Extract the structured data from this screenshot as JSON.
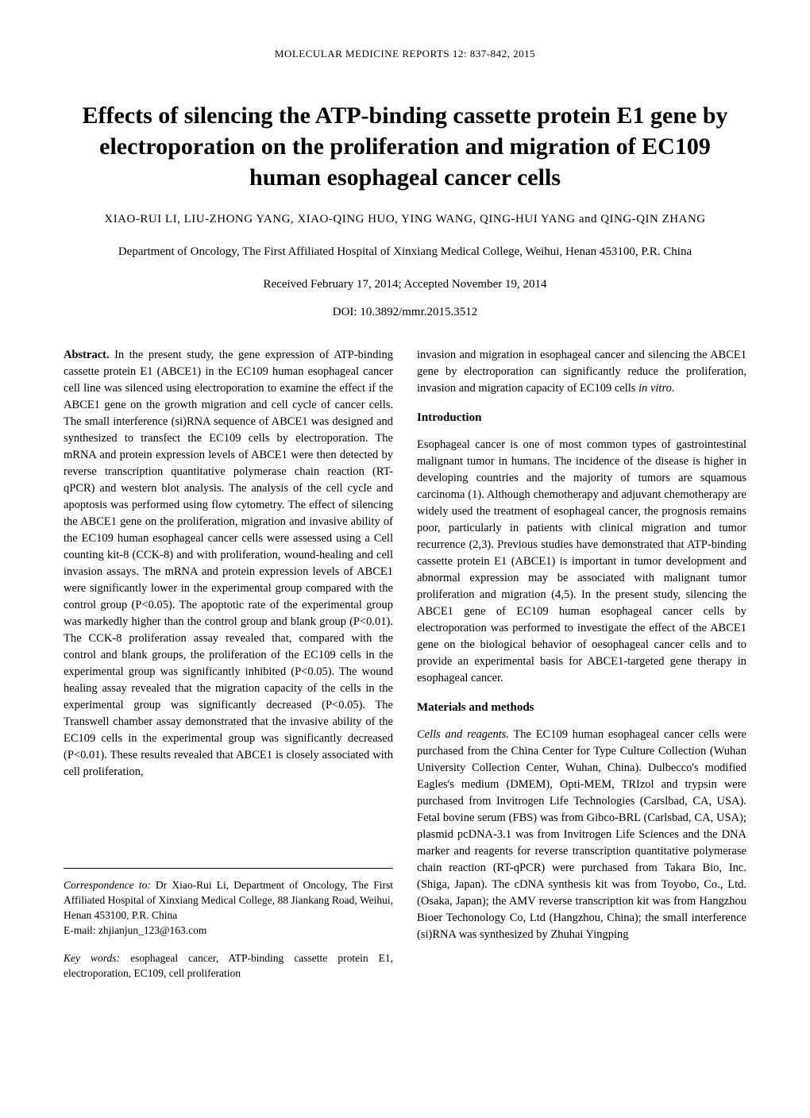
{
  "journal_header": "MOLECULAR MEDICINE REPORTS  12:  837-842,  2015",
  "title": "Effects of silencing the ATP-binding cassette protein E1 gene by electroporation on the proliferation and migration of EC109 human esophageal cancer cells",
  "authors": "XIAO-RUI LI,  LIU-ZHONG YANG,  XIAO-QING HUO,  YING WANG, QING-HUI YANG  and  QING-QIN ZHANG",
  "affiliation": "Department of Oncology, The First Affiliated Hospital of Xinxiang Medical College, Weihui, Henan 453100, P.R. China",
  "received": "Received February 17, 2014;  Accepted November 19, 2014",
  "doi": "DOI: 10.3892/mmr.2015.3512",
  "abstract_label": "Abstract.",
  "abstract_text": " In the present study, the gene expression of ATP-binding cassette protein E1 (ABCE1) in the EC109 human esophageal cancer cell line was silenced using electroporation to examine the effect if the ABCE1 gene on the growth migration and cell cycle of cancer cells. The small interference (si)RNA sequence of ABCE1 was designed and synthesized to transfect the EC109 cells by electroporation. The mRNA and protein expression levels of ABCE1 were then detected by reverse transcription quantitative polymerase chain reaction (RT-qPCR) and western blot analysis. The analysis of the cell cycle and apoptosis was performed using flow cytometry. The effect of silencing the ABCE1 gene on the proliferation, migration and invasive ability of the EC109 human esophageal cancer cells were assessed using a Cell counting kit-8 (CCK-8) and with proliferation, wound-healing and cell invasion assays. The mRNA and protein expression levels of ABCE1 were significantly lower in the experimental group compared with the control group (P<0.05). The apoptotic rate of the experimental group was markedly higher than the control group and blank group (P<0.01). The CCK-8 proliferation assay revealed that, compared with the control and blank groups, the proliferation of the EC109 cells in the experimental group was significantly inhibited (P<0.05). The wound healing assay revealed that the migration capacity of the cells in the experimental group was significantly decreased (P<0.05). The Transwell chamber assay demonstrated that the invasive ability of the EC109 cells in the experimental group was significantly decreased (P<0.01). These results revealed that ABCE1 is closely associated with cell proliferation,",
  "correspondence_label": "Correspondence to:",
  "correspondence_text": " Dr Xiao-Rui Li, Department of Oncology, The First Affiliated Hospital of Xinxiang Medical College, 88 Jiankang Road, Weihui, Henan 453100, P.R. China",
  "email_label": "E-mail: ",
  "email": "zhjianjun_123@163.com",
  "keywords_label": "Key words:",
  "keywords_text": " esophageal cancer, ATP-binding cassette protein E1, electroporation, EC109, cell proliferation",
  "col2_continuation": "invasion and migration in esophageal cancer and silencing the ABCE1 gene by electroporation can significantly reduce the proliferation, invasion and migration capacity of EC109 cells ",
  "col2_continuation_italic": "in vitro",
  "col2_continuation_end": ".",
  "introduction_heading": "Introduction",
  "introduction_text": "Esophageal cancer is one of most common types of gastrointestinal malignant tumor in humans. The incidence of the disease is higher in developing countries and the majority of tumors are squamous carcinoma (1). Although chemotherapy and adjuvant chemotherapy are widely used the treatment of esophageal cancer, the prognosis remains poor, particularly in patients with clinical migration and tumor recurrence (2,3). Previous studies have demonstrated that ATP-binding cassette protein E1 (ABCE1) is important in tumor development and abnormal expression may be associated with malignant tumor proliferation and migration (4,5). In the present study, silencing the ABCE1 gene of EC109 human esophageal cancer cells by electroporation was performed to investigate the effect of the ABCE1 gene on the biological behavior of oesophageal cancer cells and to provide an experimental basis for ABCE1-targeted gene therapy in esophageal cancer.",
  "materials_heading": "Materials and methods",
  "cells_label": "Cells and reagents.",
  "cells_text": " The EC109 human esophageal cancer cells were purchased from the China Center for Type Culture Collection (Wuhan University Collection Center, Wuhan, China). Dulbecco's modified Eagles's medium (DMEM), Opti-MEM, TRIzol and trypsin were purchased from Invitrogen Life Technologies (Carslbad, CA, USA). Fetal bovine serum (FBS) was from Gibco-BRL (Carlsbad, CA, USA); plasmid pcDNA-3.1 was from Invitrogen Life Sciences and the DNA marker and reagents for reverse transcription quantitative polymerase chain reaction (RT-qPCR) were purchased from Takara Bio, Inc. (Shiga, Japan). The cDNA synthesis kit was from Toyobo, Co., Ltd. (Osaka, Japan); the AMV reverse transcription kit was from Hangzhou Bioer Techonology Co, Ltd (Hangzhou, China); the small interference (si)RNA was synthesized by Zhuhai Yingping"
}
